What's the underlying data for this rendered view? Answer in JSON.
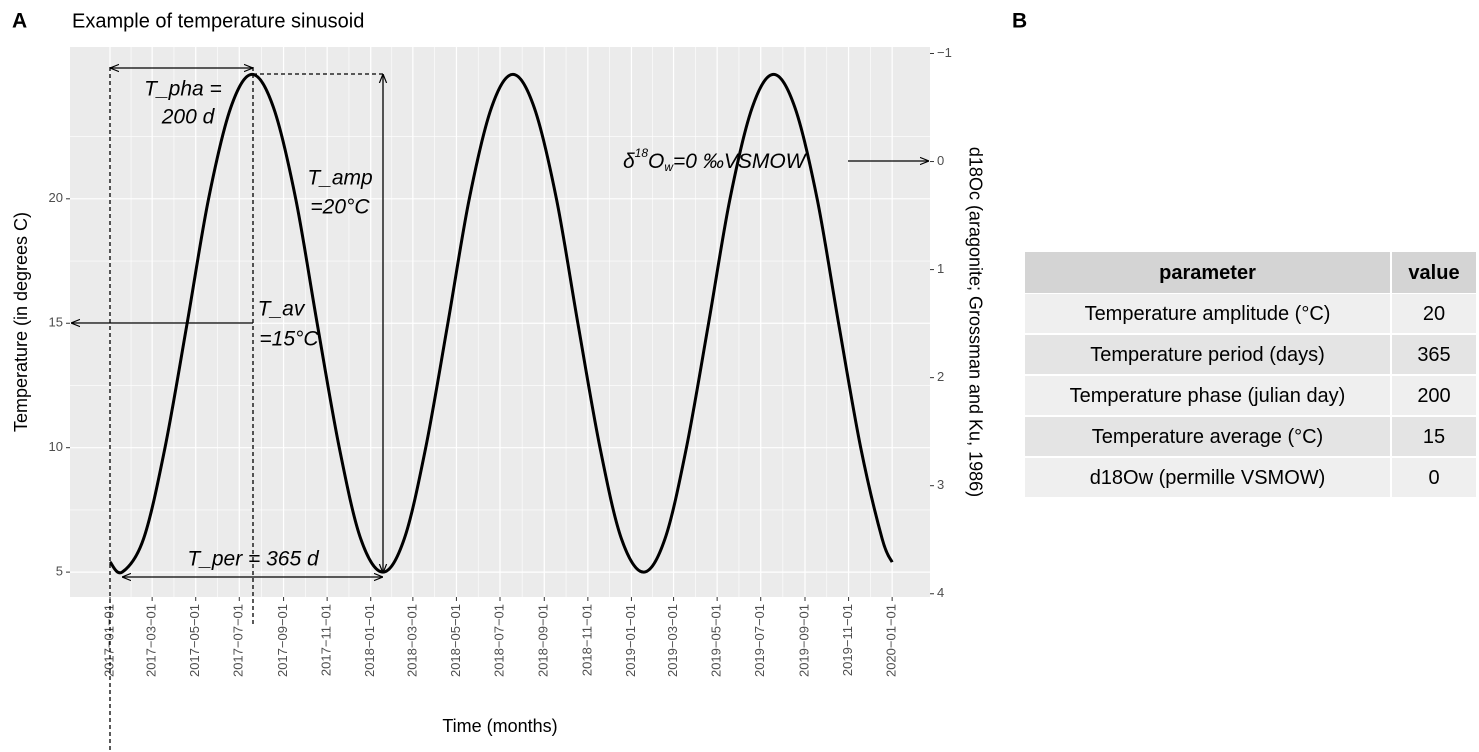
{
  "panel_labels": [
    "A",
    "B"
  ],
  "chart_data": {
    "type": "line",
    "title": "Example of temperature sinusoid",
    "x_label": "Time (months)",
    "y_label": "Temperature (in degrees C)",
    "y2_label": "d18Oc (aragonite; Grossman and Ku, 1986)",
    "color": "#000000",
    "grid": true,
    "x": [
      "2017-01-01",
      "2017-01-18",
      "2017-02-17",
      "2017-03-19",
      "2017-04-19",
      "2017-05-19",
      "2017-06-19",
      "2017-07-19",
      "2017-08-18",
      "2017-09-18",
      "2017-10-18",
      "2017-11-18",
      "2017-12-18",
      "2018-01-18",
      "2018-02-17",
      "2018-03-19",
      "2018-04-19",
      "2018-05-19",
      "2018-06-19",
      "2018-07-19",
      "2018-08-18",
      "2018-09-18",
      "2018-10-18",
      "2018-11-18",
      "2018-12-18",
      "2019-01-18",
      "2019-02-17",
      "2019-03-19",
      "2019-04-19",
      "2019-05-19",
      "2019-06-19",
      "2019-07-19",
      "2019-08-18",
      "2019-09-18",
      "2019-10-18",
      "2019-11-18",
      "2019-12-18",
      "2020-01-01"
    ],
    "values": [
      5.41,
      5,
      6.34,
      10,
      15,
      20,
      23.66,
      25,
      23.66,
      20,
      15,
      10,
      6.34,
      5,
      6.34,
      10,
      15,
      20,
      23.66,
      25,
      23.66,
      20,
      15,
      10,
      6.34,
      5,
      6.34,
      10,
      15,
      20,
      23.66,
      25,
      23.66,
      20,
      15,
      10,
      6.34,
      5.4
    ],
    "xlim": [
      "2016-11-06",
      "2020-02-23"
    ],
    "xticks": [
      {
        "value": "2017-01-01",
        "label": "2017−01−01"
      },
      {
        "value": "2017-03-01",
        "label": "2017−03−01"
      },
      {
        "value": "2017-05-01",
        "label": "2017−05−01"
      },
      {
        "value": "2017-07-01",
        "label": "2017−07−01"
      },
      {
        "value": "2017-09-01",
        "label": "2017−09−01"
      },
      {
        "value": "2017-11-01",
        "label": "2017−11−01"
      },
      {
        "value": "2018-01-01",
        "label": "2018−01−01"
      },
      {
        "value": "2018-03-01",
        "label": "2018−03−01"
      },
      {
        "value": "2018-05-01",
        "label": "2018−05−01"
      },
      {
        "value": "2018-07-01",
        "label": "2018−07−01"
      },
      {
        "value": "2018-09-01",
        "label": "2018−09−01"
      },
      {
        "value": "2018-11-01",
        "label": "2018−11−01"
      },
      {
        "value": "2019-01-01",
        "label": "2019−01−01"
      },
      {
        "value": "2019-03-01",
        "label": "2019−03−01"
      },
      {
        "value": "2019-05-01",
        "label": "2019−05−01"
      },
      {
        "value": "2019-07-01",
        "label": "2019−07−01"
      },
      {
        "value": "2019-09-01",
        "label": "2019−09−01"
      },
      {
        "value": "2019-11-01",
        "label": "2019−11−01"
      },
      {
        "value": "2020-01-01",
        "label": "2020−01−01"
      }
    ],
    "ylim": [
      4,
      26.1
    ],
    "yticks": [
      5,
      10,
      15,
      20
    ],
    "y2lim": [
      4.03,
      -1.06
    ],
    "y2ticks": [
      {
        "value": -1,
        "label": "−1"
      },
      0,
      1,
      2,
      3,
      4
    ],
    "annotations": {
      "phase": [
        "T_pha =",
        "200 d"
      ],
      "amplitude": [
        "T_amp",
        "=20°C"
      ],
      "average": [
        "T_av",
        "=15°C"
      ],
      "period": "T_per = 365 d",
      "d18ow": {
        "symbol": "δ",
        "superscript": "18",
        "base": "O",
        "subscript": "w",
        "rest": "=0 ‰VSMOW"
      }
    }
  },
  "table": {
    "header": [
      "parameter",
      "value"
    ],
    "rows": [
      [
        "Temperature amplitude (°C)",
        20
      ],
      [
        "Temperature period (days)",
        365
      ],
      [
        "Temperature phase (julian day)",
        200
      ],
      [
        "Temperature average (°C)",
        15
      ],
      [
        "d18Ow (permille VSMOW)",
        0
      ]
    ]
  }
}
